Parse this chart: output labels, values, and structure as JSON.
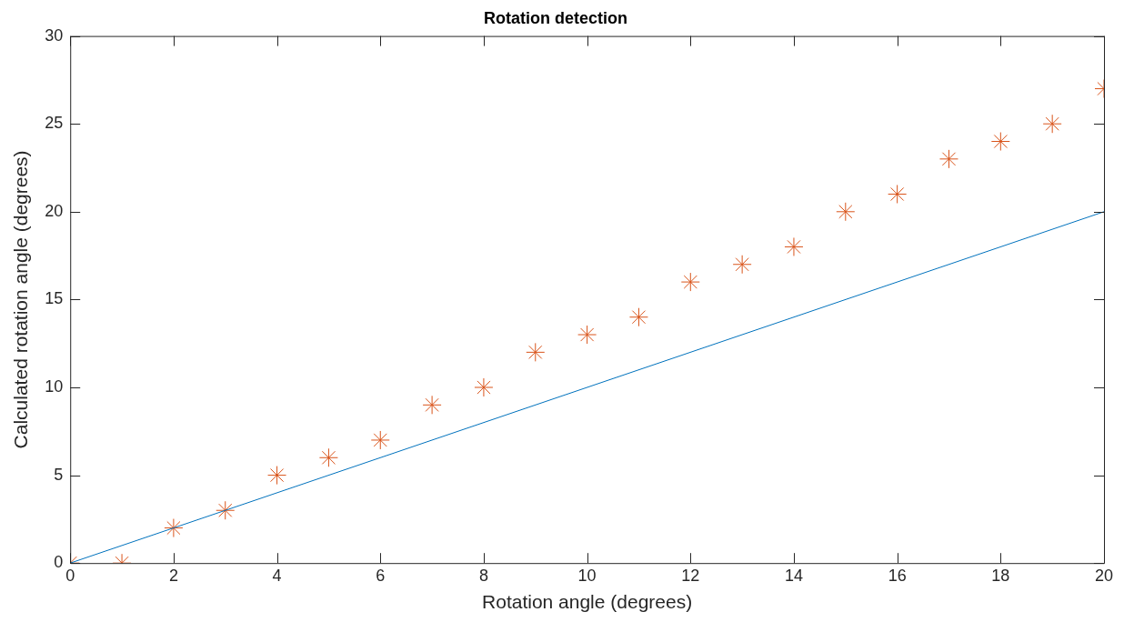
{
  "chart_data": {
    "type": "scatter",
    "title": "Rotation detection",
    "xlabel": "Rotation angle (degrees)",
    "ylabel": "Calculated rotation angle (degrees)",
    "xlim": [
      0,
      20
    ],
    "xticks": [
      0,
      2,
      4,
      6,
      8,
      10,
      12,
      14,
      16,
      18,
      20
    ],
    "ylim": [
      0,
      30
    ],
    "yticks": [
      0,
      5,
      10,
      15,
      20,
      25,
      30
    ],
    "series": [
      {
        "type": "line",
        "color": "#0072bd",
        "x": [
          0,
          20
        ],
        "values": [
          0,
          20
        ]
      },
      {
        "type": "scatter",
        "marker": "cross",
        "color": "#d95319",
        "x": [
          0,
          1,
          2,
          3,
          4,
          5,
          6,
          7,
          8,
          9,
          10,
          11,
          12,
          13,
          14,
          15,
          16,
          17,
          18,
          19,
          20
        ],
        "values": [
          0,
          0,
          2,
          3,
          5,
          6,
          7,
          9,
          10,
          12,
          13,
          14,
          16,
          17,
          18,
          20,
          21,
          23,
          24,
          25,
          27
        ]
      }
    ]
  }
}
